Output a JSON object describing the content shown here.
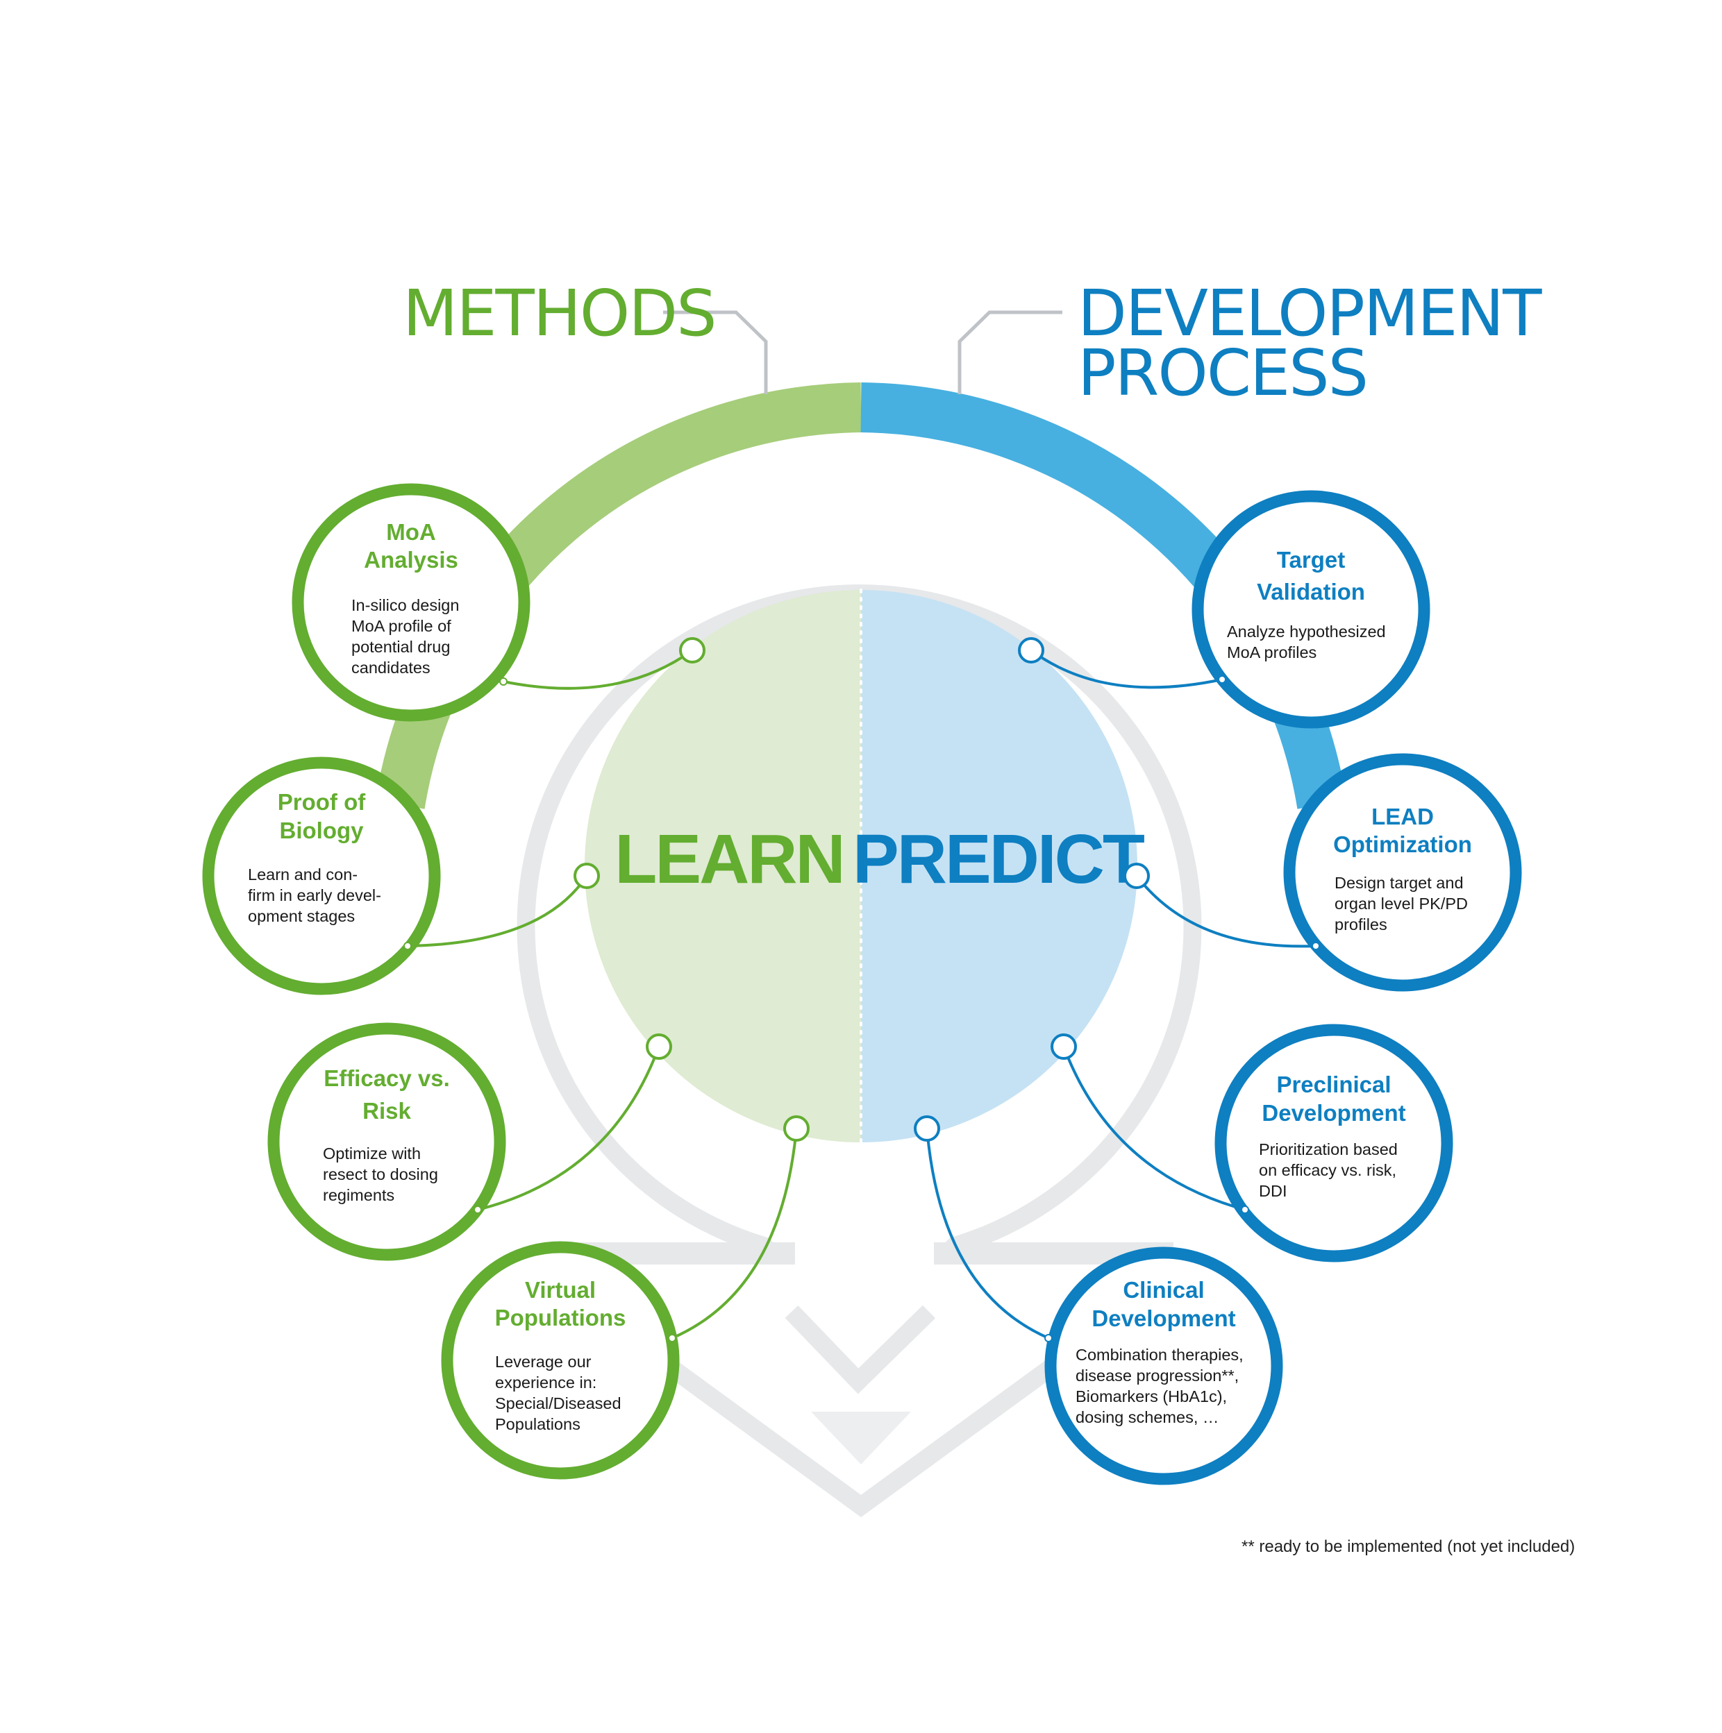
{
  "colors": {
    "green": "#63ad30",
    "green_arc": "#a6cd7a",
    "green_fill": "#dfebd2",
    "blue": "#0e7fc1",
    "blue_arc": "#47b0e0",
    "blue_fill": "#c5e2f4",
    "gray_outline": "#e6e8ea",
    "connector_gray": "#bfc3c7"
  },
  "headers": {
    "methods": "METHODS",
    "development_line1": "DEVELOPMENT",
    "development_line2": "PROCESS"
  },
  "center": {
    "learn": "LEARN",
    "predict": "PREDICT"
  },
  "nodes": {
    "moa": {
      "title": [
        "MoA",
        "Analysis"
      ],
      "body": [
        "In-silico design",
        "MoA profile of",
        "potential drug",
        "candidates"
      ]
    },
    "proof": {
      "title": [
        "Proof of",
        "Biology"
      ],
      "body": [
        "Learn and con-",
        "firm in early devel-",
        "opment stages"
      ]
    },
    "efficacy": {
      "title": [
        "Efficacy vs.",
        "Risk"
      ],
      "body": [
        "Optimize with",
        "resect to dosing",
        "regiments"
      ]
    },
    "virtual": {
      "title": [
        "Virtual",
        "Populations"
      ],
      "body": [
        "Leverage our",
        "experience in:",
        "Special/Diseased",
        "Populations"
      ]
    },
    "target": {
      "title": [
        "Target",
        "Validation"
      ],
      "body": [
        "Analyze hypothesized",
        "MoA profiles"
      ]
    },
    "lead": {
      "title": [
        "LEAD",
        "Optimization"
      ],
      "body": [
        "Design target and",
        "organ level PK/PD",
        "profiles"
      ]
    },
    "preclinical": {
      "title": [
        "Preclinical",
        "Development"
      ],
      "body": [
        "Prioritization based",
        "on efficacy vs. risk,",
        "DDI"
      ]
    },
    "clinical": {
      "title": [
        "Clinical",
        "Development"
      ],
      "body": [
        "Combination therapies,",
        "disease progression**,",
        "Biomarkers (HbA1c),",
        "dosing schemes, …"
      ]
    }
  },
  "footnote": "** ready to be implemented (not yet included)"
}
